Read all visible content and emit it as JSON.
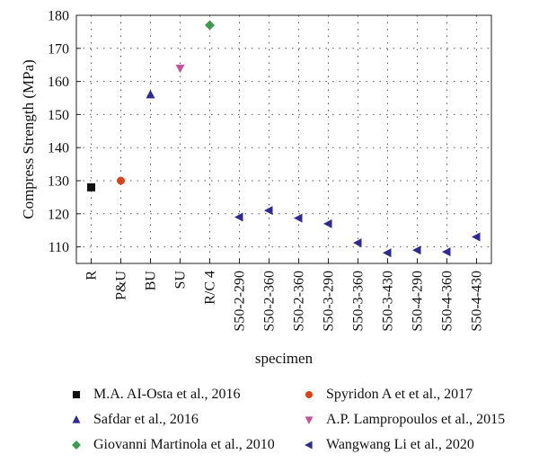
{
  "chart_data": {
    "type": "scatter",
    "xlabel": "specimen",
    "ylabel": "Compress Strength (MPa)",
    "ylim": [
      105,
      180
    ],
    "yticks": [
      110,
      120,
      130,
      140,
      150,
      160,
      170,
      180
    ],
    "grid": "dotted",
    "categories": [
      "R",
      "P&U",
      "BU",
      "SU",
      "R/C 4",
      "S50-2-290",
      "S50-2-360",
      "S50-2-360",
      "S50-3-290",
      "S50-3-360",
      "S50-3-430",
      "S50-4-290",
      "S50-4-360",
      "S50-4-430"
    ],
    "series": [
      {
        "name": "M.A. AI-Osta et al., 2016",
        "marker": "square",
        "color": "#111111",
        "points": [
          {
            "x": "R",
            "y": 128
          }
        ]
      },
      {
        "name": "Spyridon A et et al., 2017",
        "marker": "circle",
        "color": "#d9441c",
        "points": [
          {
            "x": "P&U",
            "y": 130
          }
        ]
      },
      {
        "name": "Safdar et al., 2016",
        "marker": "triangle-up",
        "color": "#2e2a8f",
        "points": [
          {
            "x": "BU",
            "y": 156
          }
        ]
      },
      {
        "name": "A.P. Lampropoulos et al., 2015",
        "marker": "triangle-down",
        "color": "#c2569e",
        "points": [
          {
            "x": "SU",
            "y": 164
          }
        ]
      },
      {
        "name": "Giovanni Martinola et al., 2010",
        "marker": "diamond",
        "color": "#3d9a4e",
        "points": [
          {
            "x": "R/C 4",
            "y": 177
          }
        ]
      },
      {
        "name": "Wangwang Li et al., 2020",
        "marker": "triangle-left",
        "color": "#2e2a8f",
        "points": [
          {
            "x": "S50-2-290",
            "y": 119
          },
          {
            "x": "S50-2-360",
            "y": 121
          },
          {
            "x": "S50-2-360",
            "y": 118.7
          },
          {
            "x": "S50-3-290",
            "y": 117
          },
          {
            "x": "S50-3-360",
            "y": 111.2
          },
          {
            "x": "S50-3-430",
            "y": 108.2
          },
          {
            "x": "S50-4-290",
            "y": 109
          },
          {
            "x": "S50-4-360",
            "y": 108.5
          },
          {
            "x": "S50-4-430",
            "y": 113
          }
        ]
      }
    ],
    "legend_placement": "bottom"
  }
}
